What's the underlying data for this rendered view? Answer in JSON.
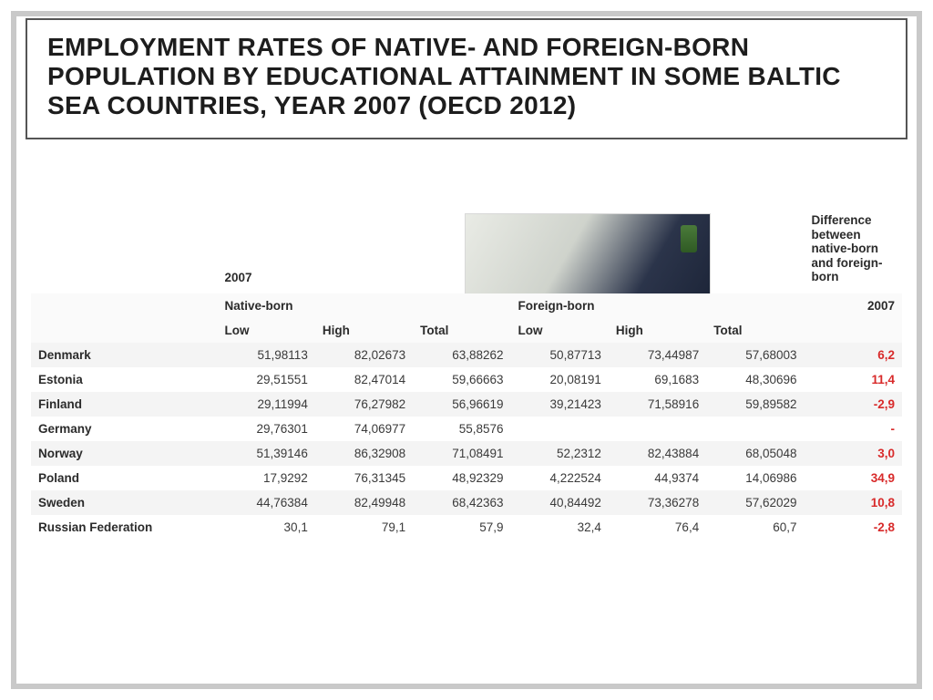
{
  "title": "EMPLOYMENT RATES OF NATIVE- AND FOREIGN-BORN POPULATION BY EDUCATIONAL ATTAINMENT IN SOME BALTIC SEA COUNTRIES, YEAR 2007 (OECD 2012)",
  "colors": {
    "border": "#c9c9c9",
    "title_border": "#555555",
    "text": "#1d1d1d",
    "row_alt": "#f4f4f4",
    "diff_red": "#d82a2a"
  },
  "typography": {
    "title_fontsize": 28,
    "title_weight": 800,
    "cell_fontsize": 13.5,
    "font_family": "Segoe UI"
  },
  "header": {
    "year": "2007",
    "diff_label": "Difference between native-born and foreign-born",
    "native_label": "Native-born",
    "foreign_label": "Foreign-born",
    "year_right": "2007",
    "sub_low": "Low",
    "sub_high": "High",
    "sub_total": "Total"
  },
  "rows": [
    {
      "country": "Denmark",
      "n_low": "51,98113",
      "n_high": "82,02673",
      "n_total": "63,88262",
      "f_low": "50,87713",
      "f_high": "73,44987",
      "f_total": "57,68003",
      "diff": "6,2"
    },
    {
      "country": "Estonia",
      "n_low": "29,51551",
      "n_high": "82,47014",
      "n_total": "59,66663",
      "f_low": "20,08191",
      "f_high": "69,1683",
      "f_total": "48,30696",
      "diff": "11,4"
    },
    {
      "country": "Finland",
      "n_low": "29,11994",
      "n_high": "76,27982",
      "n_total": "56,96619",
      "f_low": "39,21423",
      "f_high": "71,58916",
      "f_total": "59,89582",
      "diff": "-2,9"
    },
    {
      "country": "Germany",
      "n_low": "29,76301",
      "n_high": "74,06977",
      "n_total": "55,8576",
      "f_low": "",
      "f_high": "",
      "f_total": "",
      "diff": "-"
    },
    {
      "country": "Norway",
      "n_low": "51,39146",
      "n_high": "86,32908",
      "n_total": "71,08491",
      "f_low": "52,2312",
      "f_high": "82,43884",
      "f_total": "68,05048",
      "diff": "3,0"
    },
    {
      "country": "Poland",
      "n_low": "17,9292",
      "n_high": "76,31345",
      "n_total": "48,92329",
      "f_low": "4,222524",
      "f_high": "44,9374",
      "f_total": "14,06986",
      "diff": "34,9"
    },
    {
      "country": "Sweden",
      "n_low": "44,76384",
      "n_high": "82,49948",
      "n_total": "68,42363",
      "f_low": "40,84492",
      "f_high": "73,36278",
      "f_total": "57,62029",
      "diff": "10,8"
    },
    {
      "country": "Russian Federation",
      "n_low": "30,1",
      "n_high": "79,1",
      "n_total": "57,9",
      "f_low": "32,4",
      "f_high": "76,4",
      "f_total": "60,7",
      "diff": "-2,8"
    }
  ]
}
